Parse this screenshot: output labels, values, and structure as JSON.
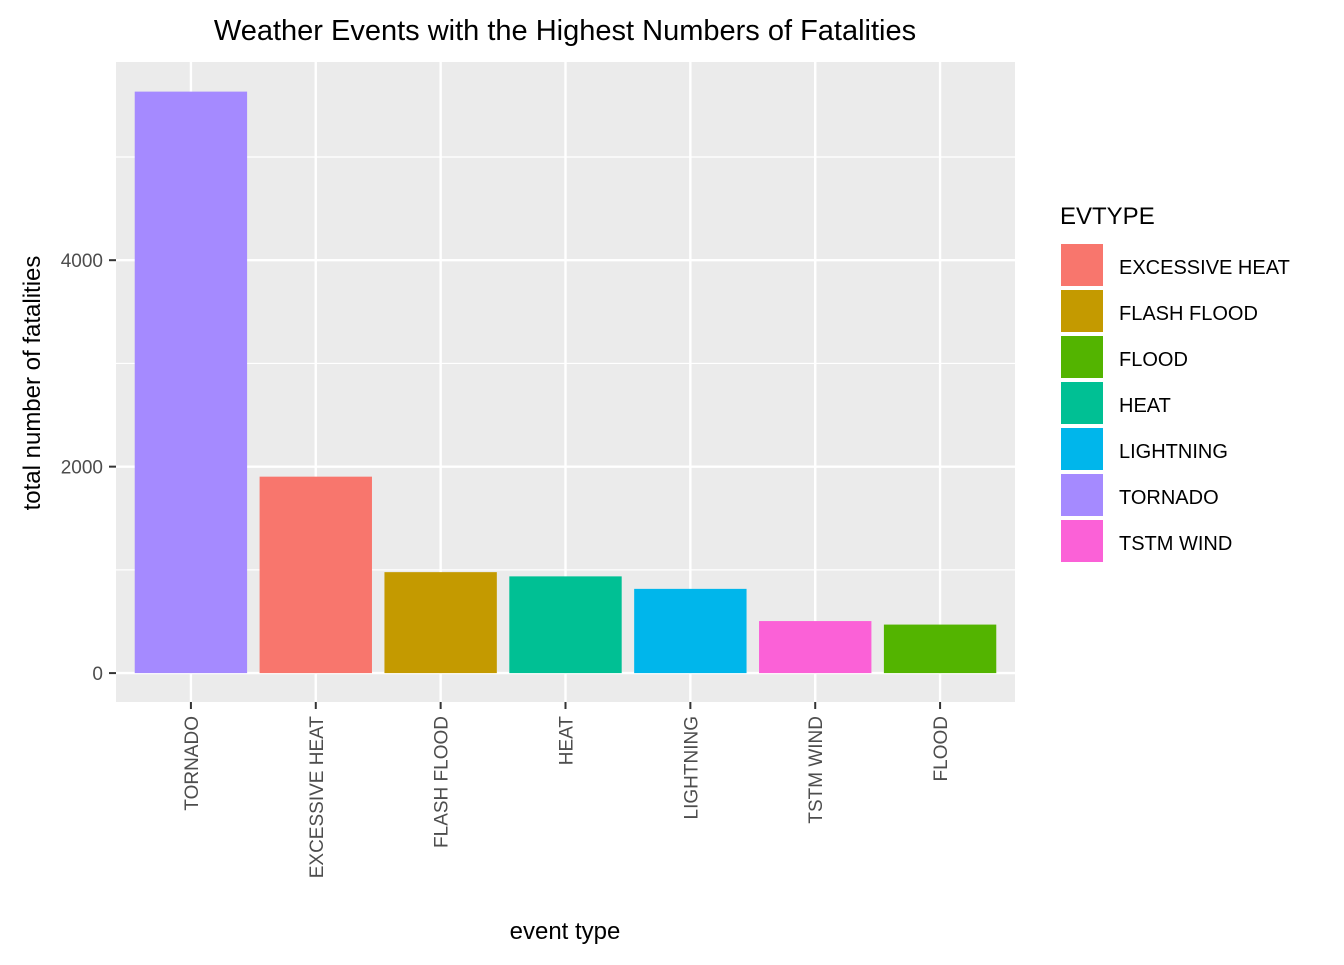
{
  "chart_data": {
    "type": "bar",
    "title": "Weather Events with the Highest Numbers of Fatalities",
    "xlabel": "event type",
    "ylabel": "total number of fatalities",
    "categories": [
      "TORNADO",
      "EXCESSIVE HEAT",
      "FLASH FLOOD",
      "HEAT",
      "LIGHTNING",
      "TSTM WIND",
      "FLOOD"
    ],
    "values": [
      5633,
      1903,
      978,
      937,
      816,
      504,
      470
    ],
    "ylim": [
      -280,
      5920
    ],
    "yticks": [
      0,
      2000,
      4000
    ],
    "ytick_labels": [
      "0",
      "2000",
      "4000"
    ],
    "grid": true,
    "legend": {
      "title": "EVTYPE",
      "position": "right",
      "items": [
        "EXCESSIVE HEAT",
        "FLASH FLOOD",
        "FLOOD",
        "HEAT",
        "LIGHTNING",
        "TORNADO",
        "TSTM WIND"
      ]
    },
    "colors": {
      "EXCESSIVE HEAT": "#F8766D",
      "FLASH FLOOD": "#C49A00",
      "FLOOD": "#53B400",
      "HEAT": "#00C094",
      "LIGHTNING": "#00B6EB",
      "TORNADO": "#A58AFF",
      "TSTM WIND": "#FB61D7"
    },
    "panel_background": "#EBEBEB",
    "grid_color": "#FFFFFF"
  }
}
